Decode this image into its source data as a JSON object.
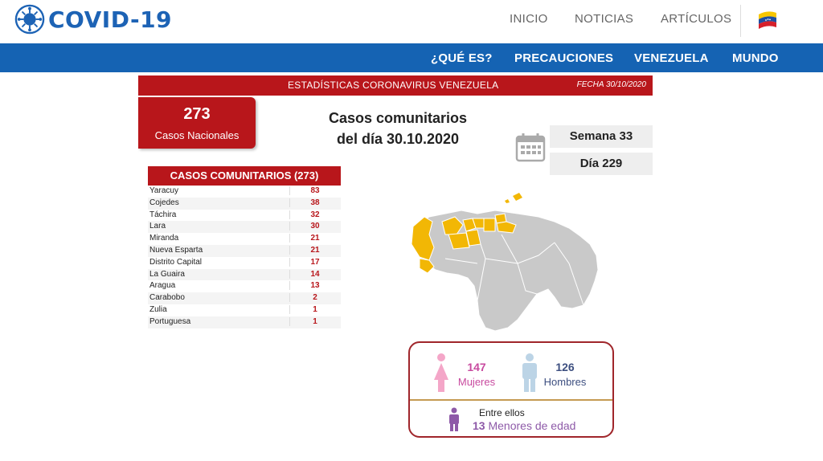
{
  "header": {
    "logo_text": "COVID-19",
    "nav": [
      "INICIO",
      "NOTICIAS",
      "ARTÍCULOS"
    ],
    "subnav": [
      "¿QUÉ ES?",
      "PRECAUCIONES",
      "VENEZUELA",
      "MUNDO"
    ]
  },
  "infographic": {
    "header_title": "ESTADÍSTICAS CORONAVIRUS VENEZUELA",
    "header_date": "FECHA 30/10/2020",
    "national_count": "273",
    "national_label": "Casos Nacionales",
    "title_line1": "Casos comunitarios",
    "title_line2": "del día 30.10.2020",
    "semana": "Semana 33",
    "dia": "Día 229",
    "cases_title": "CASOS COMUNITARIOS (273)",
    "cases": [
      {
        "state": "Yaracuy",
        "value": "83"
      },
      {
        "state": "Cojedes",
        "value": "38"
      },
      {
        "state": "Táchira",
        "value": "32"
      },
      {
        "state": "Lara",
        "value": "30"
      },
      {
        "state": "Miranda",
        "value": "21"
      },
      {
        "state": "Nueva Esparta",
        "value": "21"
      },
      {
        "state": "Distrito Capital",
        "value": "17"
      },
      {
        "state": "La Guaira",
        "value": "14"
      },
      {
        "state": "Aragua",
        "value": "13"
      },
      {
        "state": "Carabobo",
        "value": "2"
      },
      {
        "state": "Zulia",
        "value": "1"
      },
      {
        "state": "Portuguesa",
        "value": "1"
      }
    ],
    "mujeres_count": "147",
    "mujeres_label": "Mujeres",
    "hombres_count": "126",
    "hombres_label": "Hombres",
    "entre_ellos": "Entre ellos",
    "menores_count": "13",
    "menores_label": "Menores de edad",
    "colors": {
      "brand_blue": "#1563b3",
      "header_red": "#b8161b",
      "map_highlight": "#f2b705",
      "map_base": "#c9c9c9",
      "female": "#f4a6c8",
      "male": "#bcd4e6",
      "child": "#8e5aa8"
    }
  }
}
